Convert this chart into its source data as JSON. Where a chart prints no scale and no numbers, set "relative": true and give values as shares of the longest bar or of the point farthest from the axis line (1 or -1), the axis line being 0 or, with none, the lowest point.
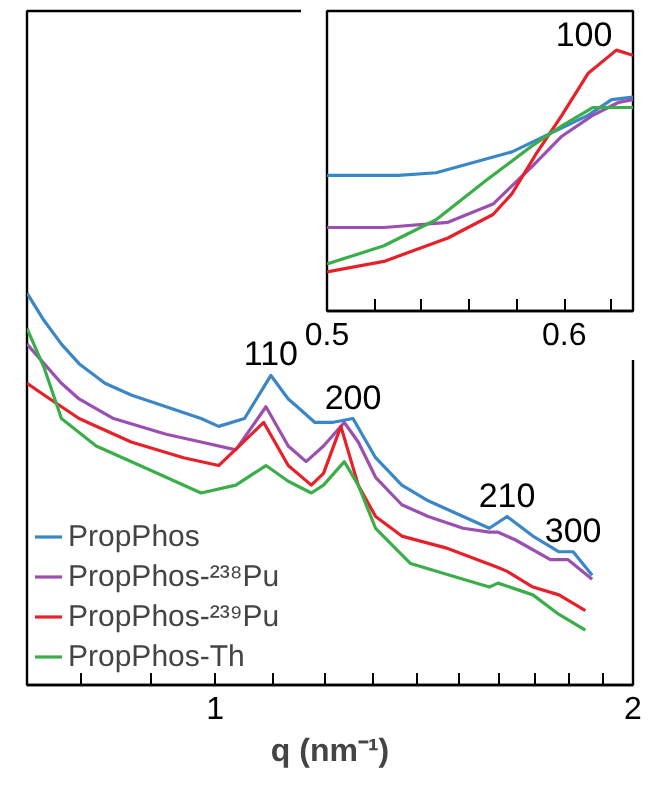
{
  "chart_data": [
    {
      "type": "line",
      "xlabel": "q (nm⁻¹)",
      "log": "x",
      "relative": true,
      "xlim": [
        0.732,
        2.0
      ],
      "xticks": [
        {
          "value": 0.8,
          "label": null
        },
        {
          "value": 0.9,
          "label": null
        },
        1,
        {
          "value": 1.1,
          "label": null
        },
        {
          "value": 1.2,
          "label": null
        },
        {
          "value": 1.3,
          "label": null
        },
        {
          "value": 1.4,
          "label": null
        },
        {
          "value": 1.5,
          "label": null
        },
        {
          "value": 1.6,
          "label": null
        },
        {
          "value": 1.7,
          "label": null
        },
        {
          "value": 1.8,
          "label": null
        },
        {
          "value": 1.9,
          "label": null
        },
        2
      ],
      "legend": "bottom left",
      "grid": false,
      "marker": "none",
      "line_style": "solid",
      "annotations": [
        {
          "text": "110",
          "x": 1.097,
          "y": 0.79
        },
        {
          "text": "200",
          "x": 1.257,
          "y": 0.68
        },
        {
          "text": "210",
          "x": 1.623,
          "y": 0.43
        },
        {
          "text": "300",
          "x": 1.811,
          "y": 0.34
        }
      ],
      "series": [
        {
          "name": "PropPhos",
          "color": "#3a87c8",
          "x": [
            0.732,
            0.753,
            0.775,
            0.798,
            0.833,
            0.87,
            0.922,
            0.977,
            1.006,
            1.05,
            1.084,
            1.097,
            1.129,
            1.146,
            1.18,
            1.214,
            1.257,
            1.305,
            1.363,
            1.424,
            1.509,
            1.576,
            1.623,
            1.694,
            1.769,
            1.811,
            1.869
          ],
          "values": [
            1.0,
            0.93,
            0.87,
            0.82,
            0.77,
            0.74,
            0.71,
            0.68,
            0.66,
            0.68,
            0.76,
            0.79,
            0.73,
            0.71,
            0.67,
            0.67,
            0.68,
            0.58,
            0.51,
            0.47,
            0.43,
            0.4,
            0.43,
            0.38,
            0.34,
            0.34,
            0.28
          ]
        },
        {
          "name": "PropPhos-²³⁸Pu",
          "color": "#9b4fb0",
          "x": [
            0.732,
            0.753,
            0.775,
            0.798,
            0.845,
            0.922,
            0.977,
            1.035,
            1.088,
            1.129,
            1.163,
            1.197,
            1.239,
            1.268,
            1.305,
            1.363,
            1.424,
            1.509,
            1.576,
            1.599,
            1.646,
            1.744,
            1.795,
            1.869
          ],
          "values": [
            0.87,
            0.82,
            0.77,
            0.73,
            0.68,
            0.64,
            0.62,
            0.6,
            0.71,
            0.61,
            0.57,
            0.61,
            0.67,
            0.62,
            0.53,
            0.46,
            0.43,
            0.4,
            0.39,
            0.39,
            0.37,
            0.32,
            0.32,
            0.27
          ]
        },
        {
          "name": "PropPhos-²³⁹Pu",
          "color": "#e8202a",
          "x": [
            0.732,
            0.753,
            0.798,
            0.87,
            0.949,
            1.006,
            1.084,
            1.129,
            1.173,
            1.197,
            1.232,
            1.268,
            1.305,
            1.363,
            1.466,
            1.599,
            1.623,
            1.694,
            1.769,
            1.848
          ],
          "values": [
            0.77,
            0.74,
            0.68,
            0.62,
            0.58,
            0.56,
            0.67,
            0.56,
            0.51,
            0.54,
            0.66,
            0.51,
            0.43,
            0.38,
            0.35,
            0.3,
            0.29,
            0.25,
            0.23,
            0.19
          ]
        },
        {
          "name": "PropPhos-Th",
          "color": "#3cae49",
          "x": [
            0.732,
            0.753,
            0.775,
            0.821,
            0.896,
            0.977,
            1.035,
            1.088,
            1.129,
            1.173,
            1.197,
            1.239,
            1.268,
            1.305,
            1.383,
            1.509,
            1.576,
            1.599,
            1.694,
            1.769,
            1.848
          ],
          "values": [
            0.91,
            0.81,
            0.68,
            0.61,
            0.55,
            0.49,
            0.51,
            0.56,
            0.52,
            0.49,
            0.51,
            0.57,
            0.51,
            0.4,
            0.31,
            0.27,
            0.25,
            0.26,
            0.23,
            0.18,
            0.14
          ]
        }
      ]
    },
    {
      "type": "line",
      "relative": true,
      "xlim": [
        0.5,
        0.629
      ],
      "xticks": [
        0.5,
        {
          "value": 0.52,
          "label": null
        },
        {
          "value": 0.54,
          "label": null
        },
        {
          "value": 0.56,
          "label": null
        },
        {
          "value": 0.58,
          "label": null
        },
        0.6,
        {
          "value": 0.62,
          "label": null
        }
      ],
      "grid": false,
      "marker": "none",
      "line_style": "solid",
      "annotations": [
        {
          "text": "100",
          "x": 0.622,
          "y": 1.0
        }
      ],
      "series": [
        {
          "color": "#3a87c8",
          "x": [
            0.5,
            0.53,
            0.546,
            0.578,
            0.594,
            0.61,
            0.62,
            0.629
          ],
          "values": [
            0.52,
            0.52,
            0.53,
            0.61,
            0.68,
            0.75,
            0.81,
            0.82
          ]
        },
        {
          "color": "#9b4fb0",
          "x": [
            0.5,
            0.524,
            0.551,
            0.57,
            0.586,
            0.599,
            0.612,
            0.623,
            0.629
          ],
          "values": [
            0.32,
            0.32,
            0.34,
            0.41,
            0.55,
            0.67,
            0.75,
            0.8,
            0.81
          ]
        },
        {
          "color": "#e8202a",
          "x": [
            0.5,
            0.524,
            0.551,
            0.57,
            0.578,
            0.588,
            0.599,
            0.61,
            0.622,
            0.629
          ],
          "values": [
            0.15,
            0.19,
            0.28,
            0.37,
            0.45,
            0.6,
            0.75,
            0.91,
            1.0,
            0.98
          ]
        },
        {
          "color": "#3cae49",
          "x": [
            0.5,
            0.524,
            0.546,
            0.567,
            0.586,
            0.599,
            0.612,
            0.629
          ],
          "values": [
            0.18,
            0.25,
            0.35,
            0.5,
            0.63,
            0.71,
            0.78,
            0.78
          ]
        }
      ]
    }
  ]
}
